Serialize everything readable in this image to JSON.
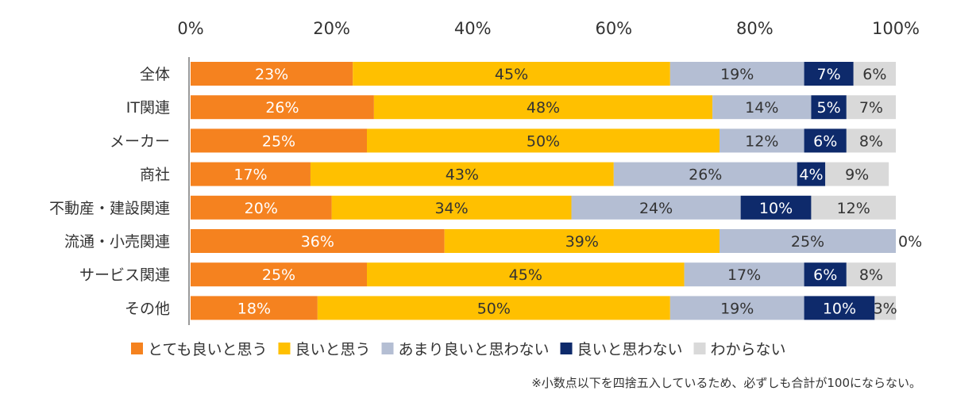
{
  "chart_data": {
    "type": "bar",
    "orientation": "horizontal",
    "stacked": true,
    "xlim": [
      0,
      100
    ],
    "x_ticks": [
      "0%",
      "20%",
      "40%",
      "60%",
      "80%",
      "100%"
    ],
    "x_tick_values": [
      0,
      20,
      40,
      60,
      80,
      100
    ],
    "categories": [
      "全体",
      "IT関連",
      "メーカー",
      "商社",
      "不動産・建設関連",
      "流通・小売関連",
      "サービス関連",
      "その他"
    ],
    "series": [
      {
        "name": "とても良いと思う",
        "color": "#F5821F",
        "label_color": "#ffffff",
        "values": [
          23,
          26,
          25,
          17,
          20,
          36,
          25,
          18
        ]
      },
      {
        "name": "良いと思う",
        "color": "#FFC000",
        "label_color": "#333333",
        "values": [
          45,
          48,
          50,
          43,
          34,
          39,
          45,
          50
        ]
      },
      {
        "name": "あまり良いと思わない",
        "color": "#B4BED3",
        "label_color": "#333333",
        "values": [
          19,
          14,
          12,
          26,
          24,
          25,
          17,
          19
        ]
      },
      {
        "name": "良いと思わない",
        "color": "#0E2A6B",
        "label_color": "#ffffff",
        "values": [
          7,
          5,
          6,
          4,
          10,
          0,
          6,
          10
        ]
      },
      {
        "name": "わからない",
        "color": "#D9D9D9",
        "label_color": "#333333",
        "values": [
          6,
          7,
          8,
          9,
          12,
          0,
          8,
          3
        ]
      }
    ],
    "legend_position": "bottom",
    "grid": false,
    "note": "※小数点以下を四捨五入しているため、必ずしも合計が100にならない。"
  }
}
